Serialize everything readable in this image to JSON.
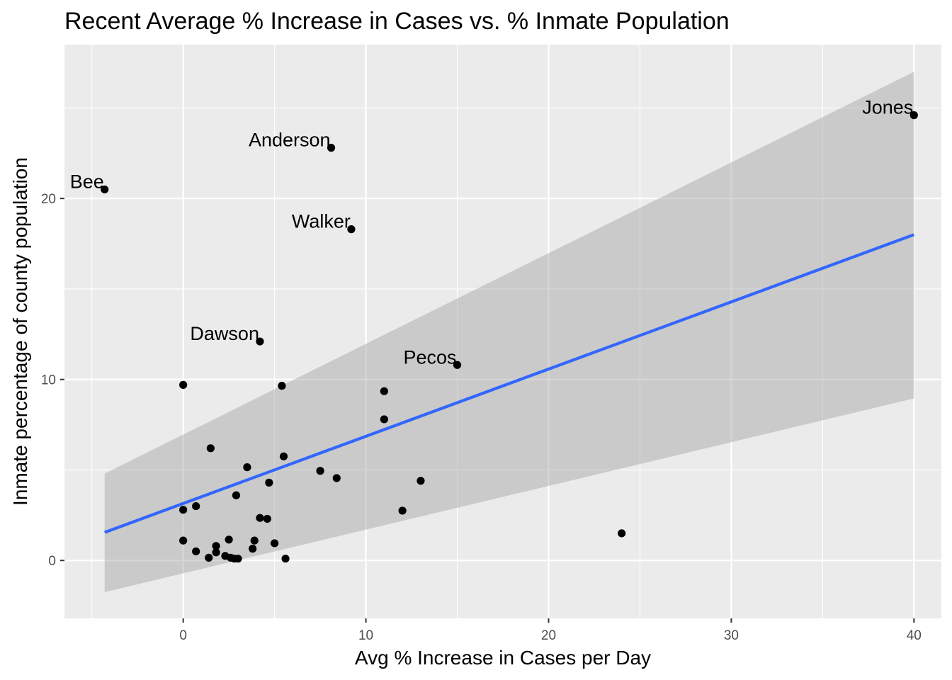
{
  "chart_data": {
    "type": "scatter",
    "title": "Recent Average % Increase in Cases vs. % Inmate Population",
    "xlabel": "Avg % Increase in Cases per Day",
    "ylabel": "Inmate percentage of county population",
    "xlim": [
      -6.5,
      41.5
    ],
    "ylim": [
      -3.2,
      28.5
    ],
    "x_ticks": [
      0,
      10,
      20,
      30,
      40
    ],
    "y_ticks": [
      0,
      10,
      20
    ],
    "x_minor_ticks": [
      -5,
      5,
      15,
      25,
      35
    ],
    "y_minor_ticks": [
      5,
      15,
      25
    ],
    "grid": true,
    "colors": {
      "panel_background": "#ebebeb",
      "grid": "#ffffff",
      "points": "#000000",
      "trend_line": "#3366ff",
      "confidence_band": "#999999"
    },
    "points": [
      {
        "x": -4.3,
        "y": 20.5,
        "label": "Bee"
      },
      {
        "x": 8.1,
        "y": 22.8,
        "label": "Anderson"
      },
      {
        "x": 9.2,
        "y": 18.3,
        "label": "Walker"
      },
      {
        "x": 4.2,
        "y": 12.1,
        "label": "Dawson"
      },
      {
        "x": 15.0,
        "y": 10.8,
        "label": "Pecos"
      },
      {
        "x": 40.0,
        "y": 24.6,
        "label": "Jones"
      },
      {
        "x": 0.0,
        "y": 9.7
      },
      {
        "x": 5.4,
        "y": 9.65
      },
      {
        "x": 11.0,
        "y": 9.35
      },
      {
        "x": 11.0,
        "y": 7.8
      },
      {
        "x": 1.5,
        "y": 6.2
      },
      {
        "x": 5.5,
        "y": 5.75
      },
      {
        "x": 3.5,
        "y": 5.15
      },
      {
        "x": 7.5,
        "y": 4.95
      },
      {
        "x": 8.4,
        "y": 4.55
      },
      {
        "x": 13.0,
        "y": 4.4
      },
      {
        "x": 4.7,
        "y": 4.3
      },
      {
        "x": 2.9,
        "y": 3.6
      },
      {
        "x": 0.0,
        "y": 2.8
      },
      {
        "x": 0.7,
        "y": 3.0
      },
      {
        "x": 12.0,
        "y": 2.75
      },
      {
        "x": 4.2,
        "y": 2.35
      },
      {
        "x": 4.6,
        "y": 2.3
      },
      {
        "x": 24.0,
        "y": 1.5
      },
      {
        "x": 0.0,
        "y": 1.1
      },
      {
        "x": 2.5,
        "y": 1.15
      },
      {
        "x": 3.9,
        "y": 1.1
      },
      {
        "x": 5.0,
        "y": 0.95
      },
      {
        "x": 1.8,
        "y": 0.8
      },
      {
        "x": 3.8,
        "y": 0.65
      },
      {
        "x": 0.7,
        "y": 0.5
      },
      {
        "x": 1.8,
        "y": 0.45
      },
      {
        "x": 2.3,
        "y": 0.25
      },
      {
        "x": 1.4,
        "y": 0.15
      },
      {
        "x": 2.6,
        "y": 0.15
      },
      {
        "x": 2.8,
        "y": 0.1
      },
      {
        "x": 3.0,
        "y": 0.1
      },
      {
        "x": 5.6,
        "y": 0.1
      }
    ],
    "trend": {
      "method": "linear",
      "x_range": [
        -4.3,
        40.0
      ],
      "fit": [
        1.55,
        18.0
      ],
      "ci_lower": [
        -1.75,
        8.95
      ],
      "ci_upper": [
        4.8,
        27.0
      ]
    }
  }
}
